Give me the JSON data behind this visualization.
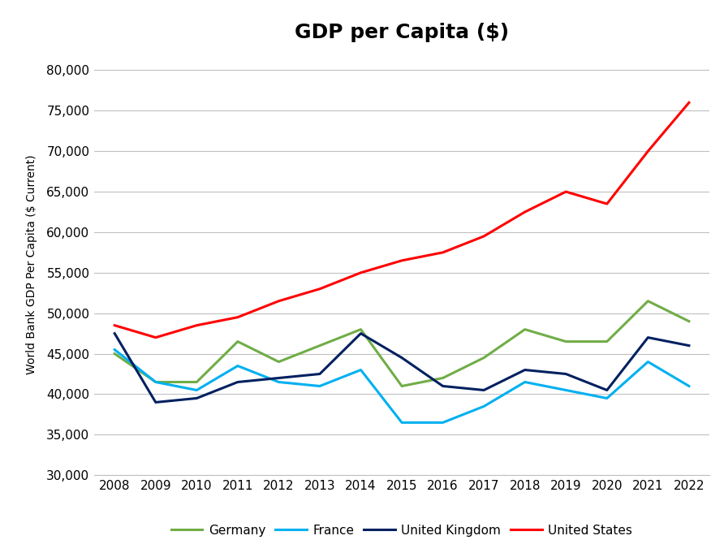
{
  "title": "GDP per Capita ($)",
  "ylabel": "World Bank GDP Per Capita ($ Current)",
  "years": [
    2008,
    2009,
    2010,
    2011,
    2012,
    2013,
    2014,
    2015,
    2016,
    2017,
    2018,
    2019,
    2020,
    2021,
    2022
  ],
  "series": {
    "Germany": {
      "values": [
        45000,
        41500,
        41500,
        46500,
        44000,
        46000,
        48000,
        41000,
        42000,
        44500,
        48000,
        46500,
        46500,
        51500,
        49000
      ],
      "color": "#70AD47",
      "linewidth": 2.2
    },
    "France": {
      "values": [
        45500,
        41500,
        40500,
        43500,
        41500,
        41000,
        43000,
        36500,
        36500,
        38500,
        41500,
        40500,
        39500,
        44000,
        41000
      ],
      "color": "#00B0F0",
      "linewidth": 2.2
    },
    "United Kingdom": {
      "values": [
        47500,
        39000,
        39500,
        41500,
        42000,
        42500,
        47500,
        44500,
        41000,
        40500,
        43000,
        42500,
        40500,
        47000,
        46000
      ],
      "color": "#002060",
      "linewidth": 2.2
    },
    "United States": {
      "values": [
        48500,
        47000,
        48500,
        49500,
        51500,
        53000,
        55000,
        56500,
        57500,
        59500,
        62500,
        65000,
        63500,
        70000,
        76000
      ],
      "color": "#FF0000",
      "linewidth": 2.2
    }
  },
  "ylim": [
    30000,
    82000
  ],
  "yticks": [
    30000,
    35000,
    40000,
    45000,
    50000,
    55000,
    60000,
    65000,
    70000,
    75000,
    80000
  ],
  "background_color": "#FFFFFF",
  "grid_color": "#C0C0C0",
  "title_fontsize": 18,
  "axis_label_fontsize": 10,
  "tick_fontsize": 11,
  "legend_fontsize": 11
}
